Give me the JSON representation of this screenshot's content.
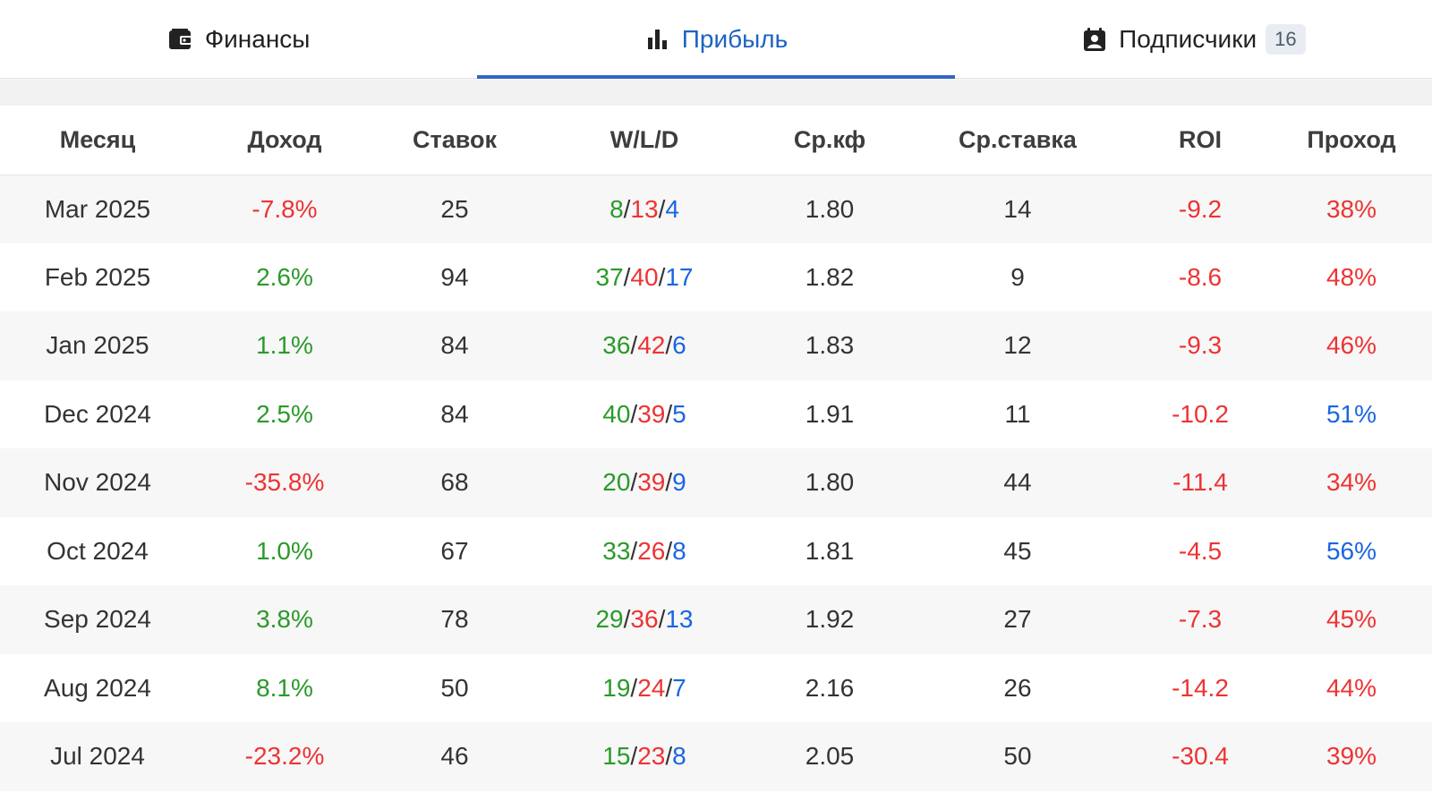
{
  "tabs": [
    {
      "label": "Финансы",
      "icon": "wallet-icon",
      "active": false
    },
    {
      "label": "Прибыль",
      "icon": "bar-chart-icon",
      "active": true
    },
    {
      "label": "Подписчики",
      "icon": "contact-card-icon",
      "active": false,
      "badge": "16"
    }
  ],
  "table": {
    "headers": [
      "Месяц",
      "Доход",
      "Ставок",
      "W/L/D",
      "Ср.кф",
      "Ср.ставка",
      "ROI",
      "Проход"
    ],
    "rows": [
      {
        "month": "Mar 2025",
        "income": "-7.8%",
        "bets": "25",
        "w": "8",
        "l": "13",
        "d": "4",
        "avg_odds": "1.80",
        "avg_stake": "14",
        "roi": "-9.2",
        "pass": "38%"
      },
      {
        "month": "Feb 2025",
        "income": "2.6%",
        "bets": "94",
        "w": "37",
        "l": "40",
        "d": "17",
        "avg_odds": "1.82",
        "avg_stake": "9",
        "roi": "-8.6",
        "pass": "48%"
      },
      {
        "month": "Jan 2025",
        "income": "1.1%",
        "bets": "84",
        "w": "36",
        "l": "42",
        "d": "6",
        "avg_odds": "1.83",
        "avg_stake": "12",
        "roi": "-9.3",
        "pass": "46%"
      },
      {
        "month": "Dec 2024",
        "income": "2.5%",
        "bets": "84",
        "w": "40",
        "l": "39",
        "d": "5",
        "avg_odds": "1.91",
        "avg_stake": "11",
        "roi": "-10.2",
        "pass": "51%"
      },
      {
        "month": "Nov 2024",
        "income": "-35.8%",
        "bets": "68",
        "w": "20",
        "l": "39",
        "d": "9",
        "avg_odds": "1.80",
        "avg_stake": "44",
        "roi": "-11.4",
        "pass": "34%"
      },
      {
        "month": "Oct 2024",
        "income": "1.0%",
        "bets": "67",
        "w": "33",
        "l": "26",
        "d": "8",
        "avg_odds": "1.81",
        "avg_stake": "45",
        "roi": "-4.5",
        "pass": "56%"
      },
      {
        "month": "Sep 2024",
        "income": "3.8%",
        "bets": "78",
        "w": "29",
        "l": "36",
        "d": "13",
        "avg_odds": "1.92",
        "avg_stake": "27",
        "roi": "-7.3",
        "pass": "45%"
      },
      {
        "month": "Aug 2024",
        "income": "8.1%",
        "bets": "50",
        "w": "19",
        "l": "24",
        "d": "7",
        "avg_odds": "2.16",
        "avg_stake": "26",
        "roi": "-14.2",
        "pass": "44%"
      },
      {
        "month": "Jul 2024",
        "income": "-23.2%",
        "bets": "46",
        "w": "15",
        "l": "23",
        "d": "8",
        "avg_odds": "2.05",
        "avg_stake": "50",
        "roi": "-30.4",
        "pass": "39%"
      }
    ]
  },
  "colors": {
    "accent": "#2f67c3",
    "positive": "#2a9a2a",
    "negative": "#ee3333",
    "neutral_blue": "#1a66e0"
  }
}
